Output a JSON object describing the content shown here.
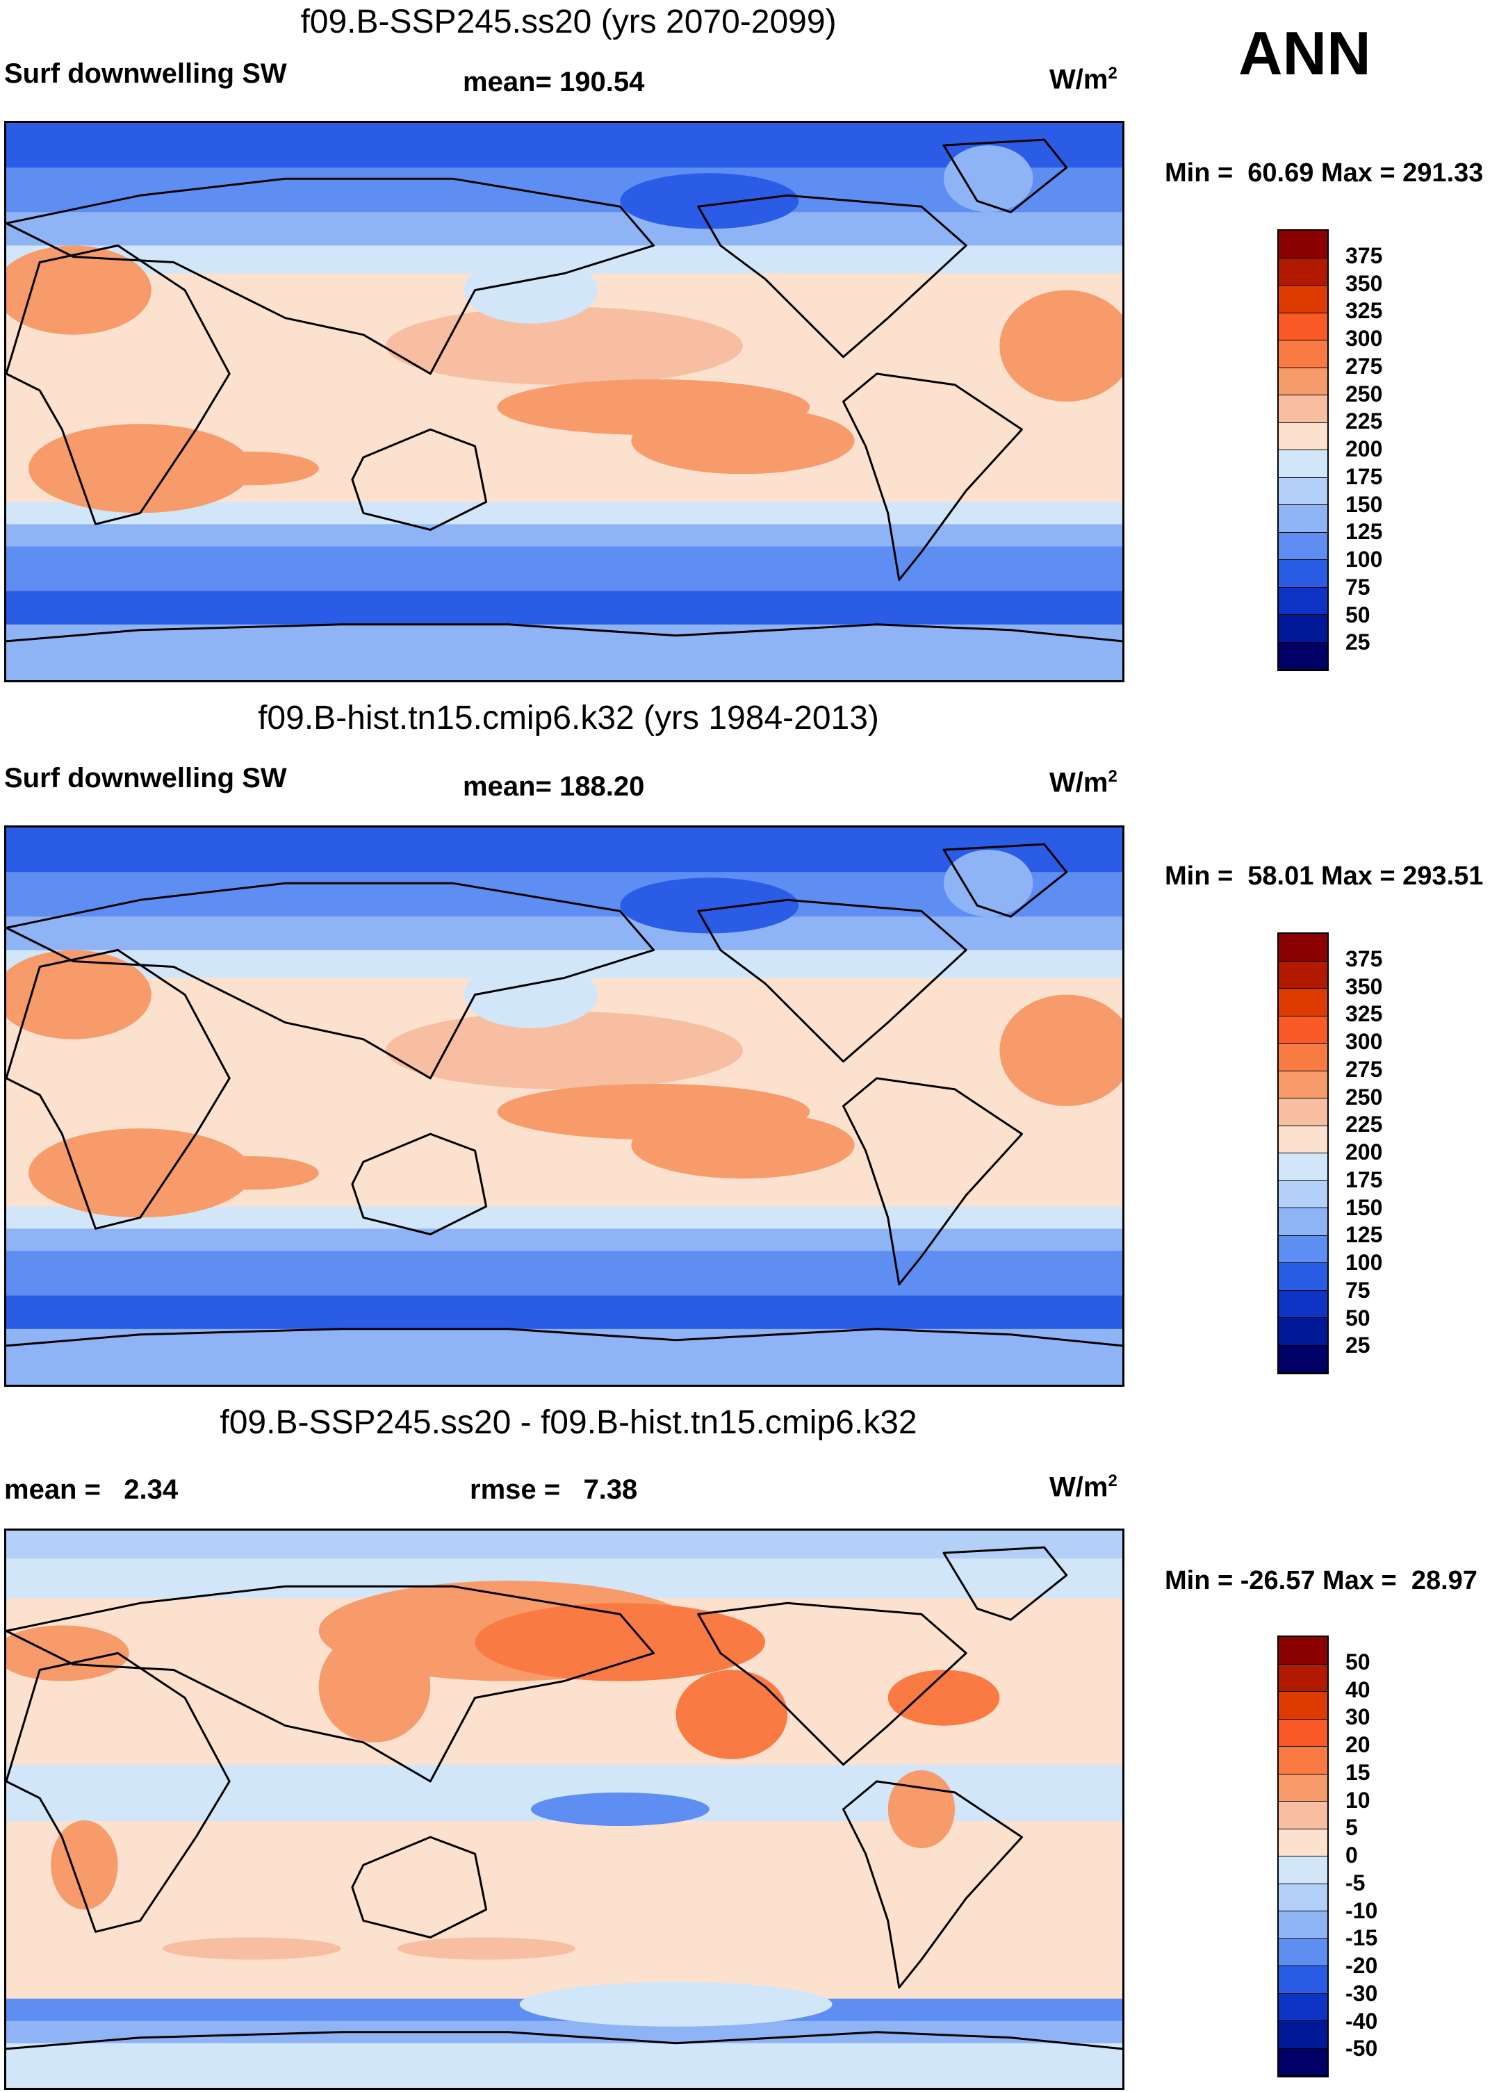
{
  "season": "ANN",
  "panels": [
    {
      "title": "f09.B-SSP245.ss20 (yrs 2070-2099)",
      "left_label": "Surf downwelling SW",
      "center_label": "mean= 190.54",
      "units": {
        "base": "W/m",
        "sup": "2"
      },
      "minmax": "Min =  60.69 Max = 291.33",
      "kind": "abs"
    },
    {
      "title": "f09.B-hist.tn15.cmip6.k32 (yrs 1984-2013)",
      "left_label": "Surf downwelling SW",
      "center_label": "mean= 188.20",
      "units": {
        "base": "W/m",
        "sup": "2"
      },
      "minmax": "Min =  58.01 Max = 293.51",
      "kind": "abs"
    },
    {
      "title": "f09.B-SSP245.ss20 - f09.B-hist.tn15.cmip6.k32",
      "left_label": "mean =   2.34",
      "center_label": "rmse =   7.38",
      "units": {
        "base": "W/m",
        "sup": "2"
      },
      "minmax": "Min = -26.57 Max =  28.97",
      "kind": "diff"
    }
  ],
  "colorbars": {
    "abs": {
      "labels": [
        "375",
        "350",
        "325",
        "300",
        "275",
        "250",
        "225",
        "200",
        "175",
        "150",
        "125",
        "100",
        "75",
        "50",
        "25"
      ],
      "colors": [
        "#8b0000",
        "#b21a00",
        "#de3b00",
        "#fa5a26",
        "#fa7a44",
        "#f79b6a",
        "#f8bea1",
        "#fde1cf",
        "#ffffff",
        "#d2e6fa",
        "#b3d0f9",
        "#8fb4f6",
        "#5f8ef3",
        "#2b5ce6",
        "#0d33c4",
        "#001999",
        "#000066"
      ]
    },
    "diff": {
      "labels": [
        "50",
        "40",
        "30",
        "20",
        "15",
        "10",
        "5",
        "0",
        "-5",
        "-10",
        "-15",
        "-20",
        "-30",
        "-40",
        "-50"
      ],
      "colors": [
        "#8b0000",
        "#b21a00",
        "#de3b00",
        "#fa5a26",
        "#fa7a44",
        "#f79b6a",
        "#f8bea1",
        "#fde1cf",
        "#ffffff",
        "#d2e6fa",
        "#b3d0f9",
        "#8fb4f6",
        "#5f8ef3",
        "#2b5ce6",
        "#0d33c4",
        "#001999",
        "#000066"
      ]
    }
  },
  "map_colors": {
    "polar_dark": "#2b5ce6",
    "polar_mid": "#5f8ef3",
    "mid_light": "#8fb4f6",
    "mid_pale": "#b3d0f9",
    "pale": "#d2e6fa",
    "neutral": "#fde1cf",
    "warm1": "#f8bea1",
    "warm2": "#f79b6a",
    "warm3": "#fa7a44",
    "coast": "#000000"
  }
}
